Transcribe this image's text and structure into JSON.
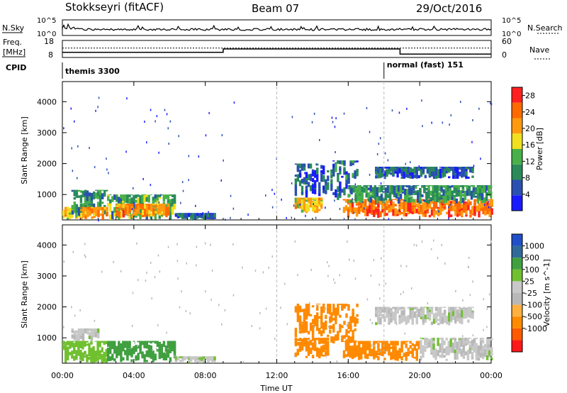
{
  "header": {
    "station": "Stokkseyri (fitACF)",
    "beam": "Beam 07",
    "date": "29/Oct/2016"
  },
  "nsky_panel": {
    "label": "N.Sky",
    "right_label": "N.Search",
    "y_ticks": [
      "10^5",
      "10^0"
    ],
    "y_ticks_right": [
      "10^5",
      "10^0"
    ]
  },
  "freq_panel": {
    "label_line1": "Freq.",
    "label_line2": "[MHz]",
    "y_ticks": [
      "18",
      "8"
    ],
    "right_label": "Nave",
    "y_ticks_right": [
      "60",
      "0"
    ],
    "freq_steps": [
      [
        0,
        11
      ],
      [
        9.0,
        11
      ],
      [
        9.0,
        13
      ],
      [
        18.9,
        13
      ],
      [
        18.9,
        10
      ],
      [
        24,
        10
      ]
    ],
    "nave_level": 13.5
  },
  "cpid_panel": {
    "label": "CPID",
    "modes": [
      {
        "name": "themis 3300",
        "start": 0
      },
      {
        "name": "normal (fast) 151",
        "start": 18.0
      }
    ]
  },
  "colors": {
    "power_scale": [
      "#1a1aff",
      "#2a50b0",
      "#2a8a5a",
      "#48b048",
      "#f0e020",
      "#ff9a10",
      "#ff6a00",
      "#ff2020"
    ],
    "velocity_scale": [
      "#ff1818",
      "#ff5a00",
      "#ff8a00",
      "#ffb040",
      "#b8b8b8",
      "#c8c8c8",
      "#70c030",
      "#40a040",
      "#306a9a",
      "#2050c8"
    ]
  },
  "chart_data": [
    {
      "type": "heatmap",
      "title": "Power",
      "ylabel": "Slant Range [km]",
      "xlabel": "",
      "colorbar_label": "Power [dB]",
      "colorbar_ticks": [
        "4",
        "8",
        "12",
        "16",
        "20",
        "24",
        "28"
      ],
      "colorbar_range": [
        0,
        30
      ],
      "y_ticks": [
        "1000",
        "2000",
        "3000",
        "4000"
      ],
      "ylim": [
        180,
        4650
      ],
      "x_ticks": [
        "00:00",
        "04:00",
        "08:00",
        "12:00",
        "16:00",
        "20:00",
        "00:00"
      ],
      "xlim": [
        0,
        24
      ],
      "regions": [
        {
          "t": [
            0.0,
            1.2
          ],
          "r": [
            180,
            600
          ],
          "power": 18
        },
        {
          "t": [
            0.5,
            2.5
          ],
          "r": [
            300,
            1150
          ],
          "power": 10
        },
        {
          "t": [
            1.0,
            2.5
          ],
          "r": [
            180,
            600
          ],
          "power": 22
        },
        {
          "t": [
            2.5,
            6.3
          ],
          "r": [
            180,
            1000
          ],
          "power": 12
        },
        {
          "t": [
            3.0,
            6.0
          ],
          "r": [
            250,
            700
          ],
          "power": 22
        },
        {
          "t": [
            6.3,
            8.5
          ],
          "r": [
            180,
            400
          ],
          "power": 6
        },
        {
          "t": [
            13.0,
            14.5
          ],
          "r": [
            400,
            900
          ],
          "power": 18
        },
        {
          "t": [
            13.0,
            14.8
          ],
          "r": [
            900,
            2000
          ],
          "power": 6
        },
        {
          "t": [
            15.0,
            16.5
          ],
          "r": [
            800,
            2100
          ],
          "power": 8
        },
        {
          "t": [
            15.7,
            24.0
          ],
          "r": [
            250,
            850
          ],
          "power": 24
        },
        {
          "t": [
            16.0,
            24.0
          ],
          "r": [
            700,
            1300
          ],
          "power": 10
        },
        {
          "t": [
            17.5,
            23.0
          ],
          "r": [
            1500,
            1900
          ],
          "power": 6
        }
      ]
    },
    {
      "type": "heatmap",
      "title": "Velocity",
      "ylabel": "Slant Range [km]",
      "xlabel": "Time UT",
      "colorbar_label": "Velocity [m s^-1]",
      "colorbar_ticks": [
        "1000",
        "500",
        "100",
        "25",
        "-25",
        "-100",
        "-500",
        "-1000"
      ],
      "y_ticks": [
        "1000",
        "2000",
        "3000",
        "4000"
      ],
      "ylim": [
        180,
        4650
      ],
      "x_ticks": [
        "00:00",
        "04:00",
        "08:00",
        "12:00",
        "16:00",
        "20:00",
        "00:00"
      ],
      "xlim": [
        0,
        24
      ],
      "regions": [
        {
          "t": [
            0.0,
            2.5
          ],
          "r": [
            180,
            900
          ],
          "velocity": 60
        },
        {
          "t": [
            0.5,
            2.0
          ],
          "r": [
            900,
            1300
          ],
          "velocity": 10
        },
        {
          "t": [
            2.5,
            6.3
          ],
          "r": [
            180,
            900
          ],
          "velocity": 120
        },
        {
          "t": [
            6.3,
            8.5
          ],
          "r": [
            180,
            400
          ],
          "velocity": 15
        },
        {
          "t": [
            13.0,
            14.8
          ],
          "r": [
            300,
            1000
          ],
          "velocity": -150
        },
        {
          "t": [
            13.0,
            15.0
          ],
          "r": [
            1000,
            2100
          ],
          "velocity": -300
        },
        {
          "t": [
            15.0,
            16.5
          ],
          "r": [
            800,
            2100
          ],
          "velocity": -300
        },
        {
          "t": [
            15.7,
            20.0
          ],
          "r": [
            250,
            900
          ],
          "velocity": -150
        },
        {
          "t": [
            20.0,
            24.0
          ],
          "r": [
            250,
            1000
          ],
          "velocity": 10
        },
        {
          "t": [
            17.5,
            23.0
          ],
          "r": [
            1400,
            2000
          ],
          "velocity": 10
        }
      ]
    }
  ]
}
